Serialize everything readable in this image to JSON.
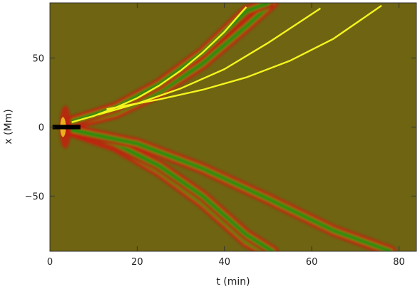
{
  "chart_data": {
    "type": "heatmap",
    "title": "",
    "xlabel": "t (min)",
    "ylabel": "x (Mm)",
    "xlim": [
      0,
      84
    ],
    "ylim": [
      -90,
      90
    ],
    "x_ticks": [
      0,
      20,
      40,
      60,
      80
    ],
    "y_ticks": [
      -50,
      0,
      50
    ],
    "grid": false,
    "colors": {
      "background": "#6e6412",
      "red_band": "#c81c0c",
      "green_band": "#1f9412",
      "yellow_line": "#f5f51e",
      "source_core": "#f0c020"
    },
    "wave_fronts_upper": [
      {
        "t": [
          5,
          15,
          25,
          35,
          45,
          49
        ],
        "x": [
          3,
          12,
          28,
          50,
          80,
          90
        ]
      },
      {
        "t": [
          5,
          15,
          25,
          35,
          45,
          51
        ],
        "x": [
          2,
          10,
          25,
          46,
          73,
          90
        ]
      },
      {
        "t": [
          5,
          15,
          25,
          35,
          45,
          50
        ],
        "x": [
          4,
          14,
          31,
          54,
          84,
          90
        ]
      }
    ],
    "wave_fronts_lower": [
      {
        "t": [
          5,
          15,
          25,
          35,
          45,
          49
        ],
        "x": [
          -3,
          -14,
          -32,
          -55,
          -83,
          -90
        ]
      },
      {
        "t": [
          5,
          15,
          25,
          35,
          45,
          51
        ],
        "x": [
          -2,
          -12,
          -28,
          -50,
          -78,
          -90
        ]
      },
      {
        "t": [
          5,
          20,
          35,
          50,
          65,
          78
        ],
        "x": [
          -2,
          -12,
          -30,
          -52,
          -75,
          -90
        ]
      }
    ],
    "series": [
      {
        "t": [
          5,
          10,
          15,
          20,
          25,
          30,
          35,
          40,
          45
        ],
        "x": [
          3.5,
          8,
          14,
          21,
          30,
          41,
          54,
          69,
          87
        ]
      },
      {
        "t": [
          11,
          20,
          30,
          40,
          50,
          62
        ],
        "x": [
          9,
          17,
          28,
          42,
          61,
          86
        ]
      },
      {
        "t": [
          13,
          25,
          35,
          45,
          55,
          65,
          76
        ],
        "x": [
          13,
          20,
          27,
          36,
          48,
          64,
          88
        ]
      }
    ]
  }
}
